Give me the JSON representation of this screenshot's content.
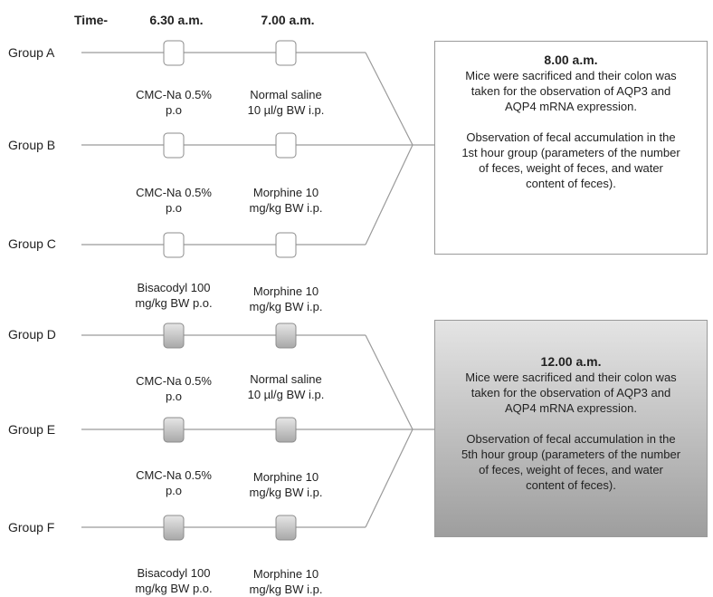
{
  "header": {
    "time_label": "Time-",
    "t1": "6.30 a.m.",
    "t2": "7.00 a.m."
  },
  "groups": [
    "Group A",
    "Group B",
    "Group C",
    "Group D",
    "Group E",
    "Group F"
  ],
  "captions": [
    {
      "first": [
        "CMC-Na 0.5%",
        "p.o"
      ],
      "second": [
        "Normal saline",
        "10 µl/g BW i.p."
      ]
    },
    {
      "first": [
        "CMC-Na 0.5%",
        "p.o"
      ],
      "second": [
        "Morphine 10",
        "mg/kg BW i.p."
      ]
    },
    {
      "first": [
        "Bisacodyl 100",
        "mg/kg BW p.o."
      ],
      "second": [
        "Morphine 10",
        "mg/kg BW i.p."
      ]
    },
    {
      "first": [
        "CMC-Na 0.5%",
        "p.o"
      ],
      "second": [
        "Normal saline",
        "10 µl/g BW i.p."
      ]
    },
    {
      "first": [
        "CMC-Na 0.5%",
        "p.o"
      ],
      "second": [
        "Morphine 10",
        "mg/kg BW i.p."
      ]
    },
    {
      "first": [
        "Bisacodyl 100",
        "mg/kg BW p.o."
      ],
      "second": [
        "Morphine 10",
        "mg/kg BW i.p."
      ]
    }
  ],
  "outcomes": [
    {
      "time": "8.00 a.m.",
      "para1": [
        "Mice were sacrificed and their colon was",
        "taken for the observation of AQP3 and",
        "AQP4 mRNA expression."
      ],
      "para2": [
        "Observation of fecal accumulation in the",
        "1st hour group (parameters of the number",
        "of feces, weight of feces, and water",
        "content of feces)."
      ]
    },
    {
      "time": "12.00 a.m.",
      "para1": [
        "Mice were sacrificed and their colon was",
        "taken for the observation of AQP3 and",
        "AQP4 mRNA expression."
      ],
      "para2": [
        "Observation of fecal accumulation in the",
        "5th hour group (parameters of the number",
        "of feces, weight of feces, and water",
        "content of feces)."
      ]
    }
  ],
  "colors": {
    "line": "#9a9a9a",
    "marker_white": "#ffffff",
    "marker_grey_top": "#e6e6e6",
    "marker_grey_bottom": "#a8a8a8",
    "box2_top": "#e4e4e4",
    "box2_bottom": "#9e9e9e"
  }
}
